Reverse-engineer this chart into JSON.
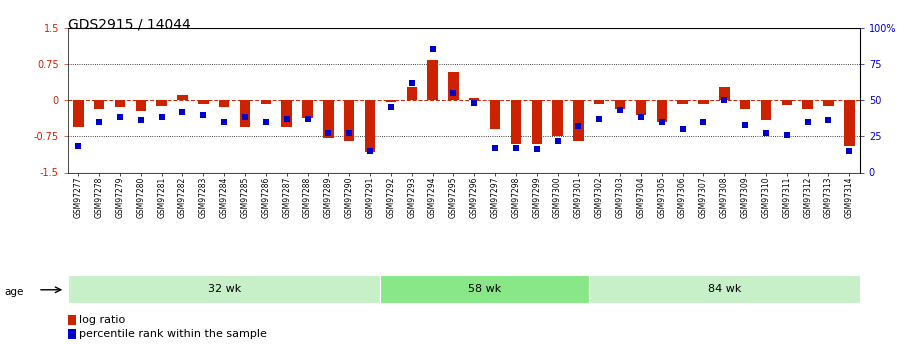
{
  "title": "GDS2915 / 14044",
  "samples": [
    "GSM97277",
    "GSM97278",
    "GSM97279",
    "GSM97280",
    "GSM97281",
    "GSM97282",
    "GSM97283",
    "GSM97284",
    "GSM97285",
    "GSM97286",
    "GSM97287",
    "GSM97288",
    "GSM97289",
    "GSM97290",
    "GSM97291",
    "GSM97292",
    "GSM97293",
    "GSM97294",
    "GSM97295",
    "GSM97296",
    "GSM97297",
    "GSM97298",
    "GSM97299",
    "GSM97300",
    "GSM97301",
    "GSM97302",
    "GSM97303",
    "GSM97304",
    "GSM97305",
    "GSM97306",
    "GSM97307",
    "GSM97308",
    "GSM97309",
    "GSM97310",
    "GSM97311",
    "GSM97312",
    "GSM97313",
    "GSM97314"
  ],
  "log_ratio": [
    -0.55,
    -0.18,
    -0.15,
    -0.22,
    -0.12,
    0.1,
    -0.08,
    -0.15,
    -0.55,
    -0.08,
    -0.55,
    -0.38,
    -0.78,
    -0.85,
    -1.08,
    -0.04,
    0.28,
    0.82,
    0.58,
    0.04,
    -0.6,
    -0.9,
    -0.92,
    -0.75,
    -0.85,
    -0.08,
    -0.18,
    -0.3,
    -0.45,
    -0.08,
    -0.08,
    0.28,
    -0.18,
    -0.42,
    -0.1,
    -0.18,
    -0.12,
    -0.95
  ],
  "percentile": [
    18,
    35,
    38,
    36,
    38,
    42,
    40,
    35,
    38,
    35,
    37,
    37,
    27,
    27,
    15,
    45,
    62,
    85,
    55,
    48,
    17,
    17,
    16,
    22,
    32,
    37,
    43,
    38,
    35,
    30,
    35,
    50,
    33,
    27,
    26,
    35,
    36,
    15
  ],
  "groups": [
    {
      "label": "32 wk",
      "start": 0,
      "end": 15,
      "color": "#c8f0c8"
    },
    {
      "label": "58 wk",
      "start": 15,
      "end": 25,
      "color": "#88e888"
    },
    {
      "label": "84 wk",
      "start": 25,
      "end": 38,
      "color": "#c8f0c8"
    }
  ],
  "ylim": [
    -1.5,
    1.5
  ],
  "yticks_left": [
    -1.5,
    -0.75,
    0,
    0.75,
    1.5
  ],
  "yticks_right": [
    0,
    25,
    50,
    75,
    100
  ],
  "bar_color": "#cc2200",
  "dot_color": "#0000cc",
  "zero_line_color": "#cc2200",
  "bg_color": "#ffffff",
  "title_fontsize": 10,
  "tick_fontsize": 7,
  "xtick_fontsize": 5.5,
  "label_fontsize": 8
}
